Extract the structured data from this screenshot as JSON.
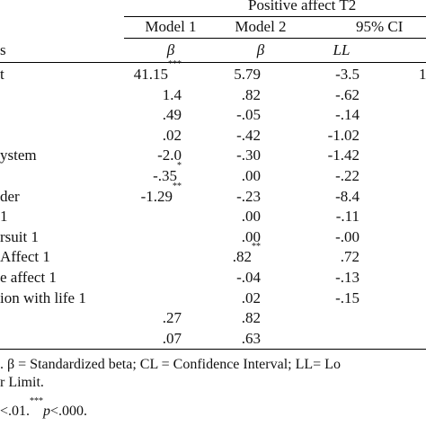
{
  "table": {
    "header_group": "Positive affect  T2",
    "columns": [
      "Model 1",
      "Model 2",
      "95% CI"
    ],
    "subheaders": {
      "label_fragment": "s",
      "m1": "β",
      "m2": "β",
      "ll": "LL"
    },
    "rows": [
      {
        "label": "t",
        "m1": "41.15",
        "m1_sig": "***",
        "m2": "5.79",
        "m2_sig": "",
        "ll": "-3.5",
        "ul": "1"
      },
      {
        "label": "",
        "m1": "1.4",
        "m1_sig": "",
        "m2": ".82",
        "m2_sig": "",
        "ll": "-.62",
        "ul": ""
      },
      {
        "label": "",
        "m1": ".49",
        "m1_sig": "",
        "m2": "-.05",
        "m2_sig": "",
        "ll": "-.14",
        "ul": ""
      },
      {
        "label": "",
        "m1": ".02",
        "m1_sig": "",
        "m2": "-.42",
        "m2_sig": "",
        "ll": "-1.02",
        "ul": ""
      },
      {
        "label": "ystem",
        "m1": "-2.0",
        "m1_sig": "",
        "m2": "-.30",
        "m2_sig": "",
        "ll": "-1.42",
        "ul": ""
      },
      {
        "label": "",
        "m1": "-.35",
        "m1_sig": "*",
        "m2": ".00",
        "m2_sig": "",
        "ll": "-.22",
        "ul": ""
      },
      {
        "label": "der",
        "m1": "-1.29",
        "m1_sig": "**",
        "m2": "-.23",
        "m2_sig": "",
        "ll": "-8.4",
        "ul": ""
      },
      {
        "label": "1",
        "m1": "",
        "m1_sig": "",
        "m2": ".00",
        "m2_sig": "",
        "ll": "-.11",
        "ul": ""
      },
      {
        "label": "rsuit 1",
        "m1": "",
        "m1_sig": "",
        "m2": ".00",
        "m2_sig": "",
        "ll": "-.00",
        "ul": ""
      },
      {
        "label": "Affect 1",
        "m1": "",
        "m1_sig": "",
        "m2": ".82",
        "m2_sig": "**",
        "ll": ".72",
        "ul": ""
      },
      {
        "label": "e affect 1",
        "m1": "",
        "m1_sig": "",
        "m2": "-.04",
        "m2_sig": "",
        "ll": "-.13",
        "ul": ""
      },
      {
        "label": "ion with life 1",
        "m1": "",
        "m1_sig": "",
        "m2": ".02",
        "m2_sig": "",
        "ll": "-.15",
        "ul": ""
      },
      {
        "label": "",
        "m1": ".27",
        "m1_sig": "",
        "m2": ".82",
        "m2_sig": "",
        "ll": "",
        "ul": ""
      },
      {
        "label": "",
        "m1": ".07",
        "m1_sig": "",
        "m2": ".63",
        "m2_sig": "",
        "ll": "",
        "ul": ""
      }
    ]
  },
  "notes": {
    "line1": ". β = Standardized beta; CL = Confidence Interval; LL= Lo",
    "line2": "r Limit.",
    "line3_a": "<.01.",
    "line3_sig": "***",
    "line3_p": "p",
    "line3_b": "<.000."
  }
}
